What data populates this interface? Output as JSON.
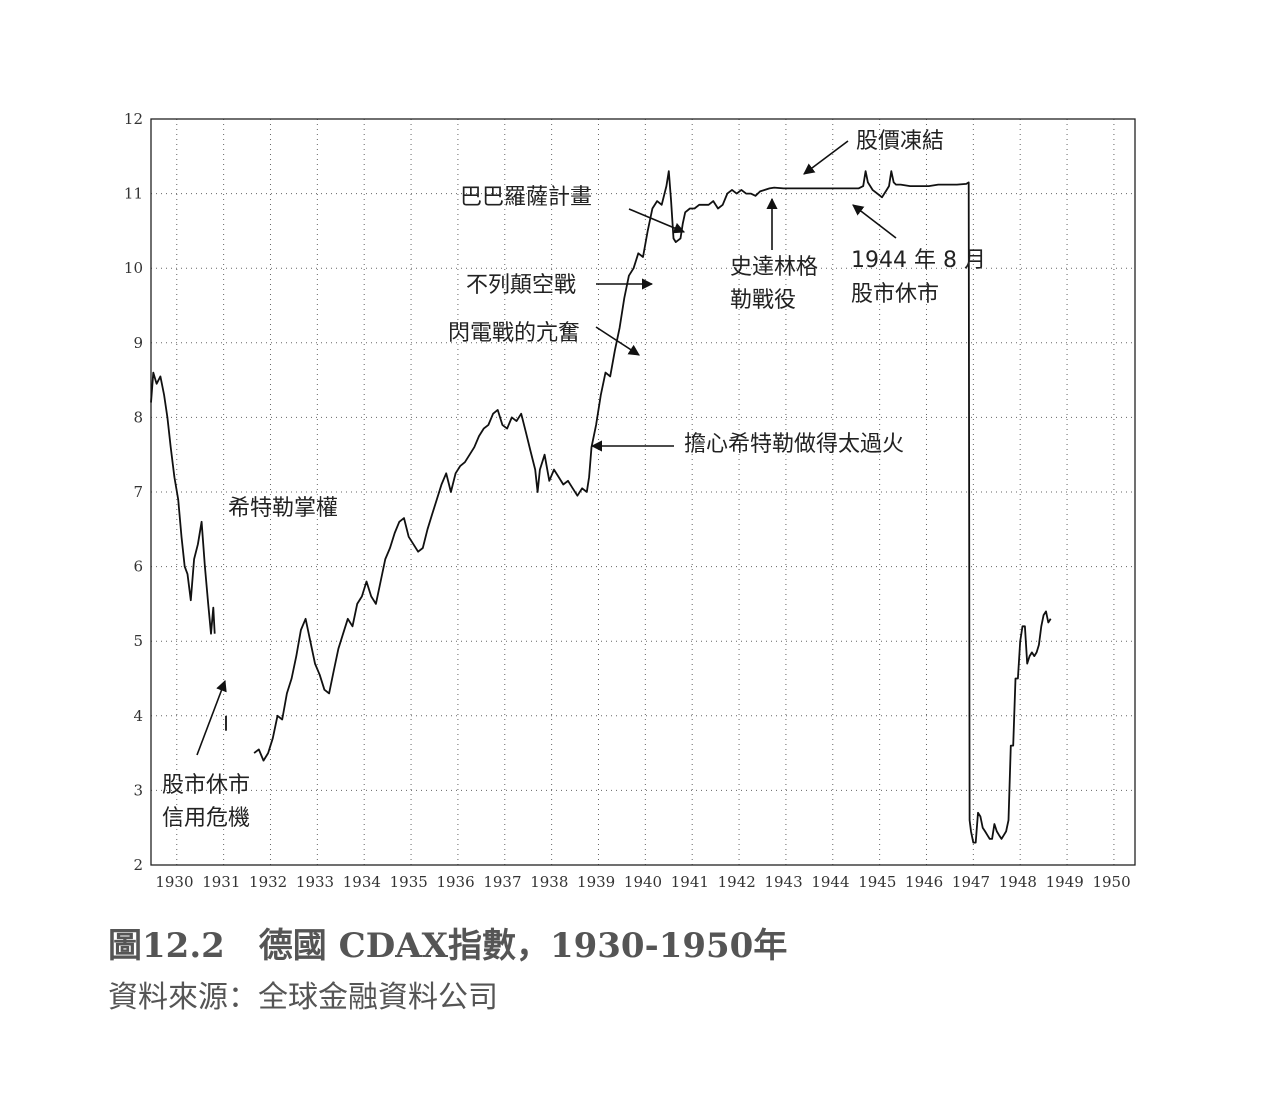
{
  "caption": "圖12.2　德國 CDAX指數，1930-1950年",
  "source": "資料來源：全球金融資料公司",
  "chart_data": {
    "type": "line",
    "title": "",
    "xlabel": "",
    "ylabel": "",
    "xlim": [
      1930,
      1951
    ],
    "ylim": [
      2,
      12
    ],
    "grid": true,
    "x_ticks": [
      "1930",
      "1931",
      "1932",
      "1933",
      "1934",
      "1935",
      "1936",
      "1937",
      "1938",
      "1939",
      "1940",
      "1941",
      "1942",
      "1943",
      "1944",
      "1945",
      "1946",
      "1947",
      "1948",
      "1949",
      "1950"
    ],
    "y_ticks": [
      "2",
      "3",
      "4",
      "5",
      "6",
      "7",
      "8",
      "9",
      "10",
      "11",
      "12"
    ],
    "series": [
      {
        "name": "",
        "segments": [
          [
            [
              1930.0,
              8.2
            ],
            [
              1930.05,
              8.6
            ],
            [
              1930.12,
              8.45
            ],
            [
              1930.2,
              8.55
            ],
            [
              1930.28,
              8.3
            ],
            [
              1930.35,
              8.0
            ],
            [
              1930.42,
              7.6
            ],
            [
              1930.5,
              7.2
            ],
            [
              1930.58,
              6.9
            ],
            [
              1930.65,
              6.4
            ],
            [
              1930.72,
              6.0
            ],
            [
              1930.78,
              5.9
            ],
            [
              1930.85,
              5.55
            ],
            [
              1930.92,
              6.1
            ],
            [
              1931.0,
              6.3
            ],
            [
              1931.08,
              6.6
            ],
            [
              1931.15,
              6.0
            ],
            [
              1931.22,
              5.5
            ],
            [
              1931.28,
              5.1
            ],
            [
              1931.33,
              5.45
            ],
            [
              1931.36,
              5.1
            ]
          ],
          [
            [
              1931.6,
              4.0
            ],
            [
              1931.6,
              3.8
            ]
          ],
          [
            [
              1932.2,
              3.5
            ],
            [
              1932.3,
              3.55
            ],
            [
              1932.4,
              3.4
            ],
            [
              1932.5,
              3.5
            ],
            [
              1932.6,
              3.7
            ],
            [
              1932.7,
              4.0
            ],
            [
              1932.8,
              3.95
            ],
            [
              1932.9,
              4.3
            ],
            [
              1933.0,
              4.5
            ],
            [
              1933.1,
              4.8
            ],
            [
              1933.2,
              5.15
            ],
            [
              1933.3,
              5.3
            ],
            [
              1933.4,
              5.0
            ],
            [
              1933.5,
              4.7
            ],
            [
              1933.6,
              4.55
            ],
            [
              1933.7,
              4.35
            ],
            [
              1933.8,
              4.3
            ],
            [
              1933.9,
              4.6
            ],
            [
              1934.0,
              4.9
            ],
            [
              1934.1,
              5.1
            ],
            [
              1934.2,
              5.3
            ],
            [
              1934.3,
              5.2
            ],
            [
              1934.4,
              5.5
            ],
            [
              1934.5,
              5.6
            ],
            [
              1934.6,
              5.8
            ],
            [
              1934.7,
              5.6
            ],
            [
              1934.8,
              5.5
            ],
            [
              1934.9,
              5.8
            ],
            [
              1935.0,
              6.1
            ],
            [
              1935.1,
              6.25
            ],
            [
              1935.2,
              6.45
            ],
            [
              1935.3,
              6.6
            ],
            [
              1935.4,
              6.65
            ],
            [
              1935.5,
              6.4
            ],
            [
              1935.6,
              6.3
            ],
            [
              1935.7,
              6.2
            ],
            [
              1935.8,
              6.25
            ],
            [
              1935.9,
              6.5
            ],
            [
              1936.0,
              6.7
            ],
            [
              1936.1,
              6.9
            ],
            [
              1936.2,
              7.1
            ],
            [
              1936.3,
              7.25
            ],
            [
              1936.4,
              7.0
            ],
            [
              1936.5,
              7.25
            ],
            [
              1936.6,
              7.35
            ],
            [
              1936.7,
              7.4
            ],
            [
              1936.8,
              7.5
            ],
            [
              1936.9,
              7.6
            ],
            [
              1937.0,
              7.75
            ],
            [
              1937.1,
              7.85
            ],
            [
              1937.2,
              7.9
            ],
            [
              1937.3,
              8.05
            ],
            [
              1937.4,
              8.1
            ],
            [
              1937.5,
              7.9
            ],
            [
              1937.6,
              7.85
            ],
            [
              1937.7,
              8.0
            ],
            [
              1937.8,
              7.95
            ],
            [
              1937.9,
              8.05
            ],
            [
              1938.0,
              7.8
            ],
            [
              1938.1,
              7.55
            ],
            [
              1938.2,
              7.3
            ],
            [
              1938.25,
              7.0
            ],
            [
              1938.3,
              7.3
            ],
            [
              1938.4,
              7.5
            ],
            [
              1938.5,
              7.15
            ],
            [
              1938.6,
              7.3
            ],
            [
              1938.7,
              7.2
            ],
            [
              1938.8,
              7.1
            ],
            [
              1938.9,
              7.15
            ],
            [
              1939.0,
              7.05
            ],
            [
              1939.1,
              6.95
            ],
            [
              1939.2,
              7.05
            ],
            [
              1939.3,
              7.0
            ],
            [
              1939.35,
              7.2
            ],
            [
              1939.4,
              7.6
            ],
            [
              1939.5,
              7.9
            ],
            [
              1939.6,
              8.3
            ],
            [
              1939.7,
              8.6
            ],
            [
              1939.8,
              8.55
            ],
            [
              1939.9,
              8.9
            ],
            [
              1940.0,
              9.2
            ],
            [
              1940.1,
              9.6
            ],
            [
              1940.2,
              9.9
            ],
            [
              1940.3,
              10.0
            ],
            [
              1940.4,
              10.2
            ],
            [
              1940.5,
              10.15
            ],
            [
              1940.6,
              10.5
            ],
            [
              1940.7,
              10.8
            ],
            [
              1940.8,
              10.9
            ],
            [
              1940.9,
              10.85
            ],
            [
              1941.0,
              11.1
            ],
            [
              1941.05,
              11.3
            ],
            [
              1941.1,
              10.9
            ],
            [
              1941.15,
              10.4
            ],
            [
              1941.2,
              10.35
            ],
            [
              1941.3,
              10.4
            ],
            [
              1941.35,
              10.6
            ],
            [
              1941.4,
              10.75
            ],
            [
              1941.5,
              10.8
            ],
            [
              1941.6,
              10.8
            ],
            [
              1941.7,
              10.85
            ],
            [
              1941.8,
              10.85
            ],
            [
              1941.9,
              10.85
            ],
            [
              1942.0,
              10.9
            ],
            [
              1942.1,
              10.8
            ],
            [
              1942.2,
              10.85
            ],
            [
              1942.3,
              11.0
            ],
            [
              1942.4,
              11.05
            ],
            [
              1942.5,
              11.0
            ],
            [
              1942.6,
              11.05
            ],
            [
              1942.7,
              11.0
            ],
            [
              1942.8,
              11.0
            ],
            [
              1942.9,
              10.97
            ],
            [
              1943.0,
              11.03
            ],
            [
              1943.1,
              11.05
            ],
            [
              1943.2,
              11.07
            ],
            [
              1943.3,
              11.08
            ],
            [
              1943.5,
              11.07
            ],
            [
              1943.7,
              11.07
            ],
            [
              1943.9,
              11.07
            ],
            [
              1944.1,
              11.07
            ],
            [
              1944.3,
              11.07
            ],
            [
              1944.5,
              11.07
            ],
            [
              1944.7,
              11.07
            ],
            [
              1944.9,
              11.07
            ],
            [
              1945.1,
              11.07
            ],
            [
              1945.2,
              11.1
            ],
            [
              1945.25,
              11.3
            ],
            [
              1945.3,
              11.15
            ],
            [
              1945.4,
              11.05
            ],
            [
              1945.5,
              11.0
            ],
            [
              1945.6,
              10.95
            ],
            [
              1945.7,
              11.05
            ],
            [
              1945.75,
              11.1
            ],
            [
              1945.8,
              11.3
            ],
            [
              1945.85,
              11.15
            ],
            [
              1945.9,
              11.12
            ],
            [
              1946.0,
              11.12
            ],
            [
              1946.2,
              11.1
            ],
            [
              1946.4,
              11.1
            ],
            [
              1946.6,
              11.1
            ],
            [
              1946.8,
              11.12
            ],
            [
              1947.0,
              11.12
            ],
            [
              1947.2,
              11.12
            ],
            [
              1947.4,
              11.13
            ],
            [
              1947.45,
              11.15
            ],
            [
              1947.47,
              2.6
            ],
            [
              1947.5,
              2.45
            ],
            [
              1947.55,
              2.3
            ],
            [
              1947.6,
              2.3
            ],
            [
              1947.65,
              2.7
            ],
            [
              1947.7,
              2.65
            ],
            [
              1947.75,
              2.5
            ],
            [
              1947.8,
              2.45
            ],
            [
              1947.85,
              2.4
            ],
            [
              1947.9,
              2.35
            ],
            [
              1947.95,
              2.35
            ],
            [
              1948.0,
              2.55
            ],
            [
              1948.05,
              2.45
            ],
            [
              1948.1,
              2.4
            ],
            [
              1948.15,
              2.35
            ],
            [
              1948.2,
              2.4
            ],
            [
              1948.25,
              2.45
            ],
            [
              1948.3,
              2.6
            ],
            [
              1948.35,
              3.6
            ],
            [
              1948.4,
              3.6
            ],
            [
              1948.45,
              4.5
            ],
            [
              1948.5,
              4.5
            ],
            [
              1948.55,
              5.0
            ],
            [
              1948.6,
              5.2
            ],
            [
              1948.65,
              5.2
            ],
            [
              1948.7,
              4.7
            ],
            [
              1948.75,
              4.8
            ],
            [
              1948.8,
              4.85
            ],
            [
              1948.85,
              4.8
            ],
            [
              1948.9,
              4.85
            ],
            [
              1948.95,
              4.95
            ],
            [
              1949.0,
              5.2
            ],
            [
              1949.05,
              5.35
            ],
            [
              1949.1,
              5.4
            ],
            [
              1949.15,
              5.25
            ],
            [
              1949.2,
              5.3
            ]
          ]
        ]
      }
    ],
    "annotations": [
      {
        "text": "股市休市",
        "x": 1930.9,
        "y": 4.5
      },
      {
        "text": "信用危機"
      },
      {
        "text": "希特勒掌權"
      },
      {
        "text": "擔心希特勒做得太過火",
        "x": 1939.0,
        "y": 7.6
      },
      {
        "text": "閃電戰的亢奮",
        "x": 1940.0,
        "y": 8.85
      },
      {
        "text": "不列顛空戰",
        "x": 1940.2,
        "y": 9.8
      },
      {
        "text": "巴巴羅薩計畫",
        "x": 1940.8,
        "y": 10.5
      },
      {
        "text": "史達林格",
        "x": 1942.65,
        "y": 11.0
      },
      {
        "text": "勒戰役"
      },
      {
        "text": "股價凍結",
        "x": 1943.0,
        "y": 11.2
      },
      {
        "text": "1944 年 8 月",
        "x": 1943.55,
        "y": 11.05
      },
      {
        "text": "股市休市"
      }
    ]
  }
}
